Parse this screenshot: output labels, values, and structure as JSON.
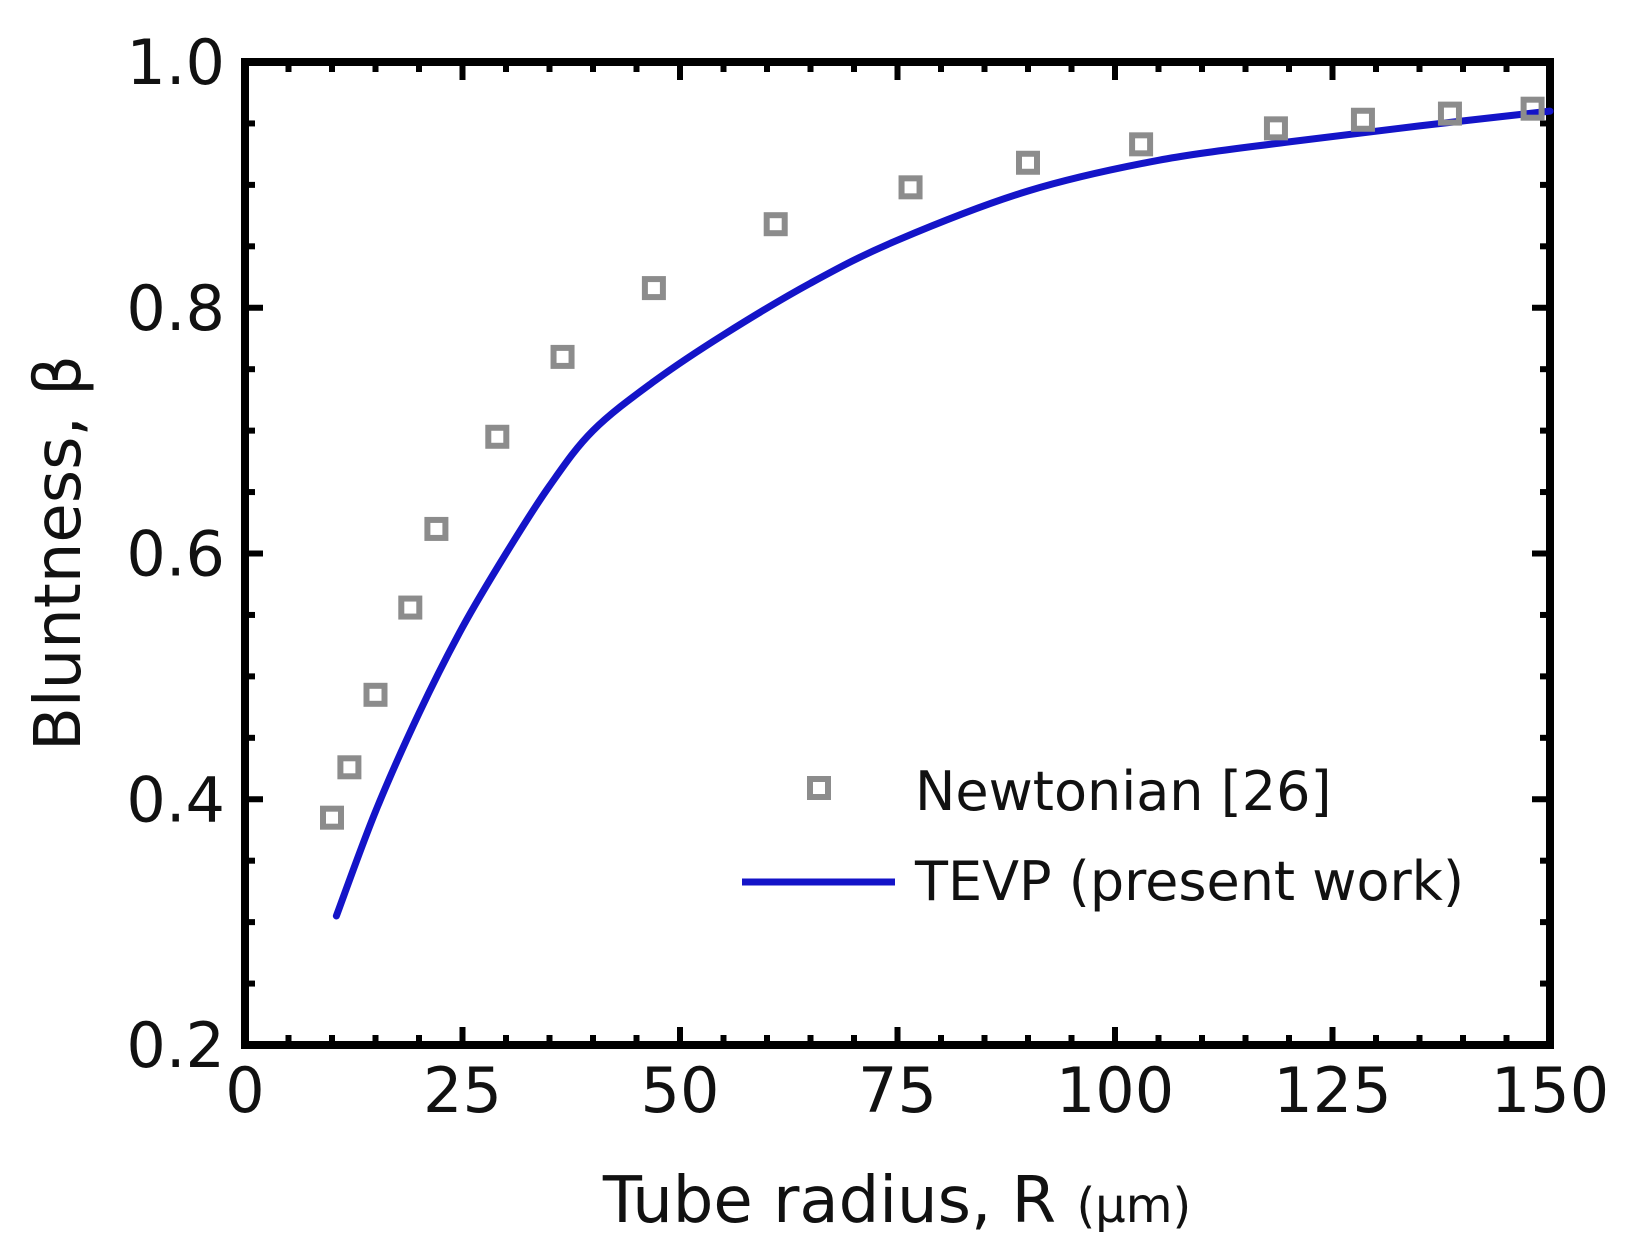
{
  "chart_data": {
    "type": "scatter",
    "title": "",
    "xlabel": "Tube radius, R",
    "xlabel_unit": "(μm)",
    "ylabel": "Bluntness, β",
    "xlim": [
      0,
      150
    ],
    "ylim": [
      0.2,
      1.0
    ],
    "x_ticks": [
      0,
      25,
      50,
      75,
      100,
      125,
      150
    ],
    "y_ticks": [
      0.2,
      0.4,
      0.6,
      0.8,
      1.0
    ],
    "x_tick_labels": [
      "0",
      "25",
      "50",
      "75",
      "100",
      "125",
      "150"
    ],
    "y_tick_labels": [
      "0.2",
      "0.4",
      "0.6",
      "0.8",
      "1.0"
    ],
    "grid": false,
    "legend_position": "bottom-right",
    "series": [
      {
        "name": "Newtonian [26]",
        "kind": "scatter",
        "marker": "open-square",
        "color": "#8c8c8c",
        "x": [
          10,
          12,
          15,
          19,
          22,
          29,
          36.5,
          47,
          61,
          76.5,
          90,
          103,
          118.5,
          128.5,
          138.5,
          148
        ],
        "y": [
          0.385,
          0.426,
          0.485,
          0.556,
          0.62,
          0.695,
          0.76,
          0.816,
          0.868,
          0.898,
          0.918,
          0.933,
          0.946,
          0.953,
          0.958,
          0.962
        ]
      },
      {
        "name": "TEVP (present work)",
        "kind": "line",
        "color": "#1414c8",
        "x": [
          10.5,
          15,
          20,
          25,
          30,
          35,
          40,
          47,
          55,
          65,
          75,
          90,
          105,
          120,
          135,
          150
        ],
        "y": [
          0.305,
          0.39,
          0.47,
          0.54,
          0.6,
          0.655,
          0.7,
          0.74,
          0.778,
          0.82,
          0.855,
          0.895,
          0.92,
          0.935,
          0.948,
          0.96
        ]
      }
    ]
  }
}
